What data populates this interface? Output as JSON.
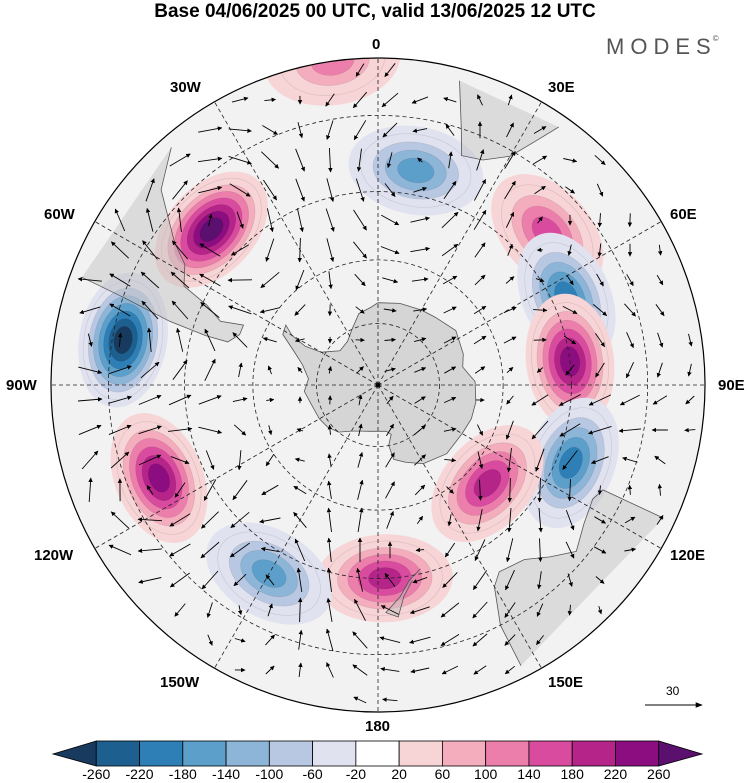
{
  "title": "Base 04/06/2025 00 UTC, valid 13/06/2025 12 UTC",
  "brand": "MODES",
  "brand_mark": "©",
  "longitude_labels": {
    "lon_0": "0",
    "lon_30e": "30E",
    "lon_60e": "60E",
    "lon_90e": "90E",
    "lon_120e": "120E",
    "lon_150e": "150E",
    "lon_180": "180",
    "lon_150w": "150W",
    "lon_120w": "120W",
    "lon_90w": "90W",
    "lon_60w": "60W",
    "lon_30w": "30W"
  },
  "reference_vector": {
    "label": "30"
  },
  "colorbar": {
    "ticks": [
      "-260",
      "-220",
      "-180",
      "-140",
      "-100",
      "-60",
      "-20",
      "20",
      "60",
      "100",
      "140",
      "180",
      "220",
      "260"
    ],
    "colors": [
      "#173a5e",
      "#1d5f8f",
      "#2e7fb5",
      "#5b9fca",
      "#8db5d8",
      "#b9c8e2",
      "#e1e2ef",
      "#ffffff",
      "#f7d4d6",
      "#f3adbd",
      "#ec7eac",
      "#d94b9f",
      "#b52489",
      "#8b0d7f",
      "#5b0f6e"
    ]
  },
  "anomaly_centers": [
    {
      "id": "c1",
      "lon": 10,
      "lat": -40,
      "value": -130
    },
    {
      "id": "c2",
      "lon": 48,
      "lat": -38,
      "value": 120
    },
    {
      "id": "c3",
      "lon": 65,
      "lat": -42,
      "value": -140
    },
    {
      "id": "c4",
      "lon": 83,
      "lat": -45,
      "value": 200
    },
    {
      "id": "c5",
      "lon": 112,
      "lat": -42,
      "value": -170
    },
    {
      "id": "c6",
      "lon": 132,
      "lat": -55,
      "value": 140
    },
    {
      "id": "c7",
      "lon": 178,
      "lat": -45,
      "value": 140
    },
    {
      "id": "c8",
      "lon": -150,
      "lat": -40,
      "value": -130
    },
    {
      "id": "c9",
      "lon": -113,
      "lat": -36,
      "value": 210
    },
    {
      "id": "c10",
      "lon": -80,
      "lat": -32,
      "value": -240
    },
    {
      "id": "c11",
      "lon": -47,
      "lat": -38,
      "value": 250
    },
    {
      "id": "c12",
      "lon": -8,
      "lat": -20,
      "value": 70
    }
  ],
  "map_style": {
    "projection": "south-polar-stereographic",
    "land_color": "#d9d9d9",
    "coast_color": "#555555",
    "grid_dash": true
  }
}
